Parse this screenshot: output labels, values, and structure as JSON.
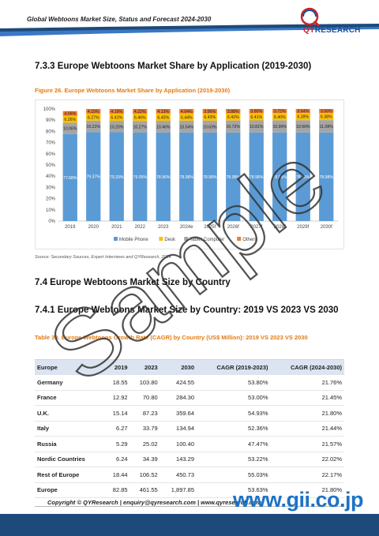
{
  "header": {
    "title": "Global Webtoons Market Size, Status and Forecast 2024-2030",
    "logo_text_a": "QY",
    "logo_text_b": "RESEARCH"
  },
  "sections": {
    "s733": "7.3.3  Europe Webtoons Market Share by Application (2019-2030)",
    "s74": "7.4  Europe Webtoons Market Size by Country",
    "s741": "7.4.1  Europe Webtoons Market Size by Country: 2019 VS 2023 VS 2030"
  },
  "figure_caption": "Figure 26.  Europe Webtoons Market Share by Application (2019-2030)",
  "source": "Source: Secondary Sources, Expert Interviews and QYResearch, 2024",
  "chart_data": {
    "type": "bar",
    "stacked": true,
    "categories": [
      "2019",
      "2020",
      "2021",
      "2022",
      "2023",
      "2024e",
      "2025f",
      "2026f",
      "2027f",
      "2028f",
      "2029f",
      "2030f"
    ],
    "series": [
      {
        "name": "Mobile Phone",
        "color": "#5b9bd5",
        "values": [
          77.68,
          79.37,
          79.2,
          79.05,
          78.96,
          78.98,
          78.98,
          78.98,
          78.98,
          78.98,
          78.98,
          78.98
        ],
        "labels": [
          "77.68%",
          "79.37%",
          "79.20%",
          "79.05%",
          "78.96%",
          "78.98%",
          "78.98%",
          "78.98%",
          "78.98%",
          "78.98%",
          "78.98%",
          "78.98%"
        ]
      },
      {
        "name": "Tablet Computer",
        "color": "#a5a5a5",
        "values": [
          10.06,
          10.21,
          10.2,
          10.27,
          10.46,
          10.54,
          10.63,
          10.72,
          10.81,
          10.9,
          10.99,
          11.08
        ],
        "labels": [
          "10.06%",
          "10.21%",
          "10.20%",
          "10.27%",
          "10.46%",
          "10.54%",
          "10.63%",
          "10.72%",
          "10.81%",
          "10.90%",
          "10.99%",
          "11.08%"
        ]
      },
      {
        "name": "Desk",
        "color": "#ffc000",
        "values": [
          6.26,
          6.27,
          6.41,
          6.46,
          6.45,
          6.44,
          6.43,
          6.42,
          6.41,
          6.4,
          6.39,
          6.38
        ],
        "labels": [
          "6.26%",
          "6.27%",
          "6.41%",
          "6.46%",
          "6.45%",
          "6.44%",
          "6.43%",
          "6.42%",
          "6.41%",
          "6.40%",
          "6.39%",
          "6.38%"
        ]
      },
      {
        "name": "Others",
        "color": "#ed7d31",
        "values": [
          4.06,
          4.15,
          4.19,
          4.22,
          4.13,
          4.04,
          3.96,
          3.88,
          3.8,
          3.72,
          3.64,
          3.56
        ],
        "labels": [
          "4.06%",
          "4.15%",
          "4.19%",
          "4.22%",
          "4.13%",
          "4.04%",
          "3.96%",
          "3.88%",
          "3.80%",
          "3.72%",
          "3.64%",
          "3.56%"
        ]
      }
    ],
    "ylim": [
      0,
      100
    ],
    "yticks": [
      "0%",
      "10%",
      "20%",
      "30%",
      "40%",
      "50%",
      "60%",
      "70%",
      "80%",
      "90%",
      "100%"
    ],
    "legend": [
      "Mobile Phone",
      "Desk",
      "Tablet Computer",
      "Others"
    ],
    "legend_position": "bottom"
  },
  "table": {
    "caption": "Table 39.  Europe Webtoons Growth Rate (CAGR) by Country (US$ Million): 2019 VS 2023 VS 2030",
    "headers": [
      "Europe",
      "2019",
      "2023",
      "2030",
      "CAGR (2019-2023)",
      "CAGR (2024-2030)"
    ],
    "rows": [
      [
        "Germany",
        "18.55",
        "103.80",
        "424.55",
        "53.80%",
        "21.76%"
      ],
      [
        "France",
        "12.92",
        "70.80",
        "284.30",
        "53.00%",
        "21.45%"
      ],
      [
        "U.K.",
        "15.14",
        "87.23",
        "359.64",
        "54.93%",
        "21.80%"
      ],
      [
        "Italy",
        "6.27",
        "33.79",
        "134.94",
        "52.36%",
        "21.44%"
      ],
      [
        "Russia",
        "5.29",
        "25.02",
        "100.40",
        "47.47%",
        "21.57%"
      ],
      [
        "Nordic Countries",
        "6.24",
        "34.39",
        "143.29",
        "53.22%",
        "22.02%"
      ],
      [
        "Rest of Europe",
        "18.44",
        "106.52",
        "450.73",
        "55.03%",
        "22.17%"
      ],
      [
        "Europe",
        "82.85",
        "461.55",
        "1,897.85",
        "53.63%",
        "21.80%"
      ]
    ]
  },
  "footer": "Copyright © QYResearch | enquiry@qyresearch.com | www.qyresearch.com",
  "watermark": "Sample",
  "gii": "www.gii.co.jp"
}
